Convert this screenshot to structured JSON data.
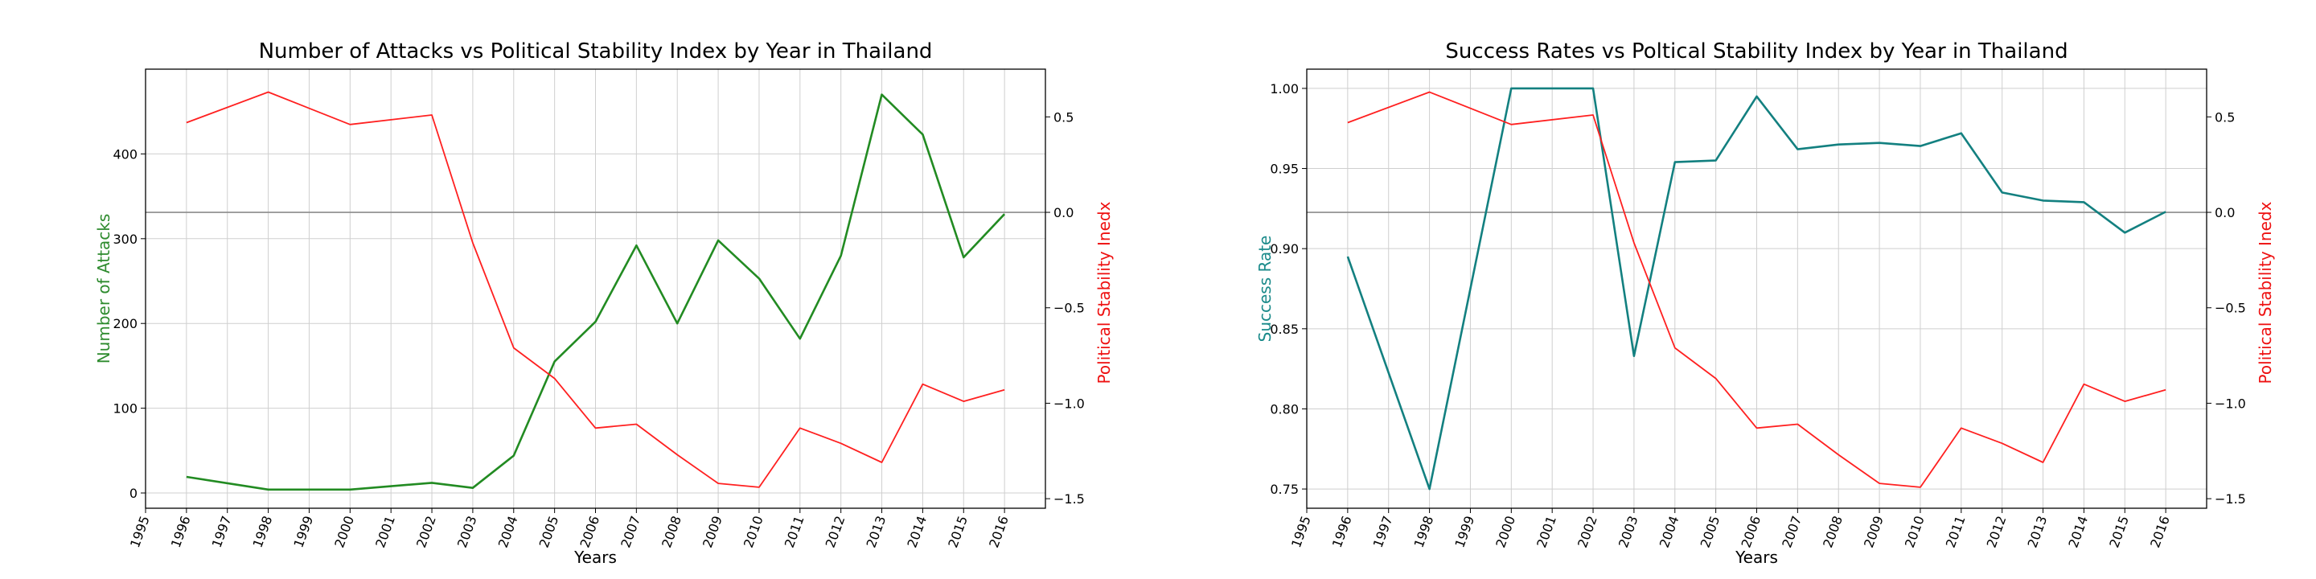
{
  "chart_data": [
    {
      "type": "line",
      "title": "Number of Attacks vs Political Stability Index by Year in Thailand",
      "xlabel": "Years",
      "ylabel_left": "Number of Attacks",
      "ylabel_right": "Political Stability Inedx",
      "x_ticks": [
        "1995",
        "1996",
        "1997",
        "1998",
        "1999",
        "2000",
        "2001",
        "2002",
        "2003",
        "2004",
        "2005",
        "2006",
        "2007",
        "2008",
        "2009",
        "2010",
        "2011",
        "2012",
        "2013",
        "2014",
        "2015",
        "2016"
      ],
      "ylim_left": [
        -18,
        500
      ],
      "yticks_left": [
        0,
        100,
        200,
        300,
        400
      ],
      "ylim_right": [
        -1.55,
        0.75
      ],
      "yticks_right": [
        -1.5,
        -1.0,
        -0.5,
        0.0,
        0.5
      ],
      "yticks_right_labels": [
        "−1.5",
        "−1.0",
        "−0.5",
        "0.0",
        "0.5"
      ],
      "grid": true,
      "hline_right": 0.0,
      "left_label_color": "#2e8b2e",
      "right_label_color": "#ee1111",
      "series": [
        {
          "axis": "left",
          "color": "#228B22",
          "x": [
            1996,
            1998,
            2000,
            2002,
            2003,
            2004,
            2005,
            2006,
            2007,
            2008,
            2009,
            2010,
            2011,
            2012,
            2013,
            2014,
            2015,
            2016
          ],
          "values": [
            19,
            4,
            4,
            12,
            6,
            44,
            155,
            202,
            292,
            200,
            298,
            253,
            182,
            280,
            470,
            423,
            278,
            329
          ]
        },
        {
          "axis": "right",
          "color": "#ff2020",
          "x": [
            1996,
            1998,
            2000,
            2002,
            2003,
            2004,
            2005,
            2006,
            2007,
            2008,
            2009,
            2010,
            2011,
            2012,
            2013,
            2014,
            2015,
            2016
          ],
          "values": [
            0.47,
            0.63,
            0.46,
            0.51,
            -0.16,
            -0.71,
            -0.87,
            -1.13,
            -1.11,
            -1.27,
            -1.42,
            -1.44,
            -1.13,
            -1.21,
            -1.31,
            -0.9,
            -0.99,
            -0.93
          ]
        }
      ]
    },
    {
      "type": "line",
      "title": "Success Rates vs Poltical Stability Index by Year in Thailand",
      "xlabel": "Years",
      "ylabel_left": "Success Rate",
      "ylabel_right": "Political Stability Inedx",
      "x_ticks": [
        "1995",
        "1996",
        "1997",
        "1998",
        "1999",
        "2000",
        "2001",
        "2002",
        "2003",
        "2004",
        "2005",
        "2006",
        "2007",
        "2008",
        "2009",
        "2010",
        "2011",
        "2012",
        "2013",
        "2014",
        "2015",
        "2016"
      ],
      "ylim_left": [
        0.738,
        1.012
      ],
      "yticks_left": [
        0.75,
        0.8,
        0.85,
        0.9,
        0.95,
        1.0
      ],
      "yticks_left_labels": [
        "0.75",
        "0.80",
        "0.85",
        "0.90",
        "0.95",
        "1.00"
      ],
      "ylim_right": [
        -1.55,
        0.75
      ],
      "yticks_right": [
        -1.5,
        -1.0,
        -0.5,
        0.0,
        0.5
      ],
      "yticks_right_labels": [
        "−1.5",
        "−1.0",
        "−0.5",
        "0.0",
        "0.5"
      ],
      "grid": true,
      "hline_right": 0.0,
      "left_label_color": "#1a8a8a",
      "right_label_color": "#ee1111",
      "series": [
        {
          "axis": "left",
          "color": "#138080",
          "x": [
            1996,
            1998,
            2000,
            2002,
            2003,
            2004,
            2005,
            2006,
            2007,
            2008,
            2009,
            2010,
            2011,
            2012,
            2013,
            2014,
            2015,
            2016
          ],
          "values": [
            0.895,
            0.75,
            1.0,
            1.0,
            0.833,
            0.954,
            0.955,
            0.995,
            0.962,
            0.965,
            0.966,
            0.964,
            0.972,
            0.935,
            0.93,
            0.929,
            0.91,
            0.923
          ]
        },
        {
          "axis": "right",
          "color": "#ff2020",
          "x": [
            1996,
            1998,
            2000,
            2002,
            2003,
            2004,
            2005,
            2006,
            2007,
            2008,
            2009,
            2010,
            2011,
            2012,
            2013,
            2014,
            2015,
            2016
          ],
          "values": [
            0.47,
            0.63,
            0.46,
            0.51,
            -0.16,
            -0.71,
            -0.87,
            -1.13,
            -1.11,
            -1.27,
            -1.42,
            -1.44,
            -1.13,
            -1.21,
            -1.31,
            -0.9,
            -0.99,
            -0.93
          ]
        }
      ]
    }
  ]
}
